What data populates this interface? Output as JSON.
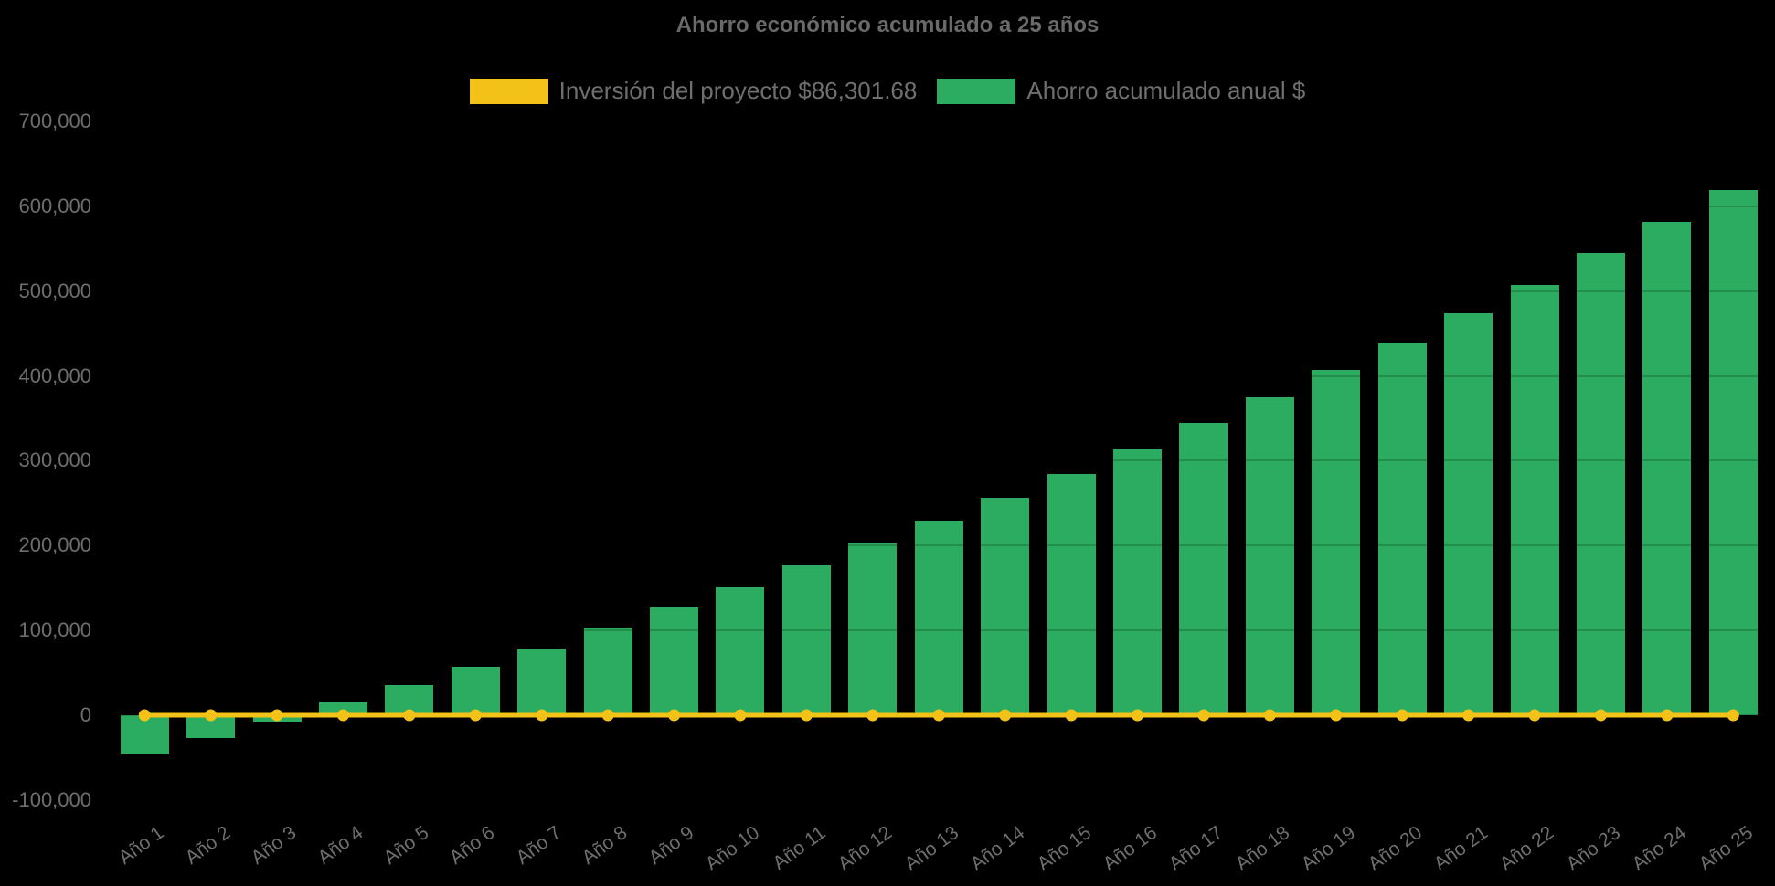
{
  "chart_data": {
    "type": "bar",
    "title": "Ahorro económico acumulado a 25 años",
    "background_color": "#000000",
    "text_color": "#6e6e6e",
    "legend_position": "top",
    "categories": [
      "Año 1",
      "Año 2",
      "Año 3",
      "Año 4",
      "Año 5",
      "Año 6",
      "Año 7",
      "Año 8",
      "Año 9",
      "Año 10",
      "Año 11",
      "Año 12",
      "Año 13",
      "Año 14",
      "Año 15",
      "Año 16",
      "Año 17",
      "Año 18",
      "Año 19",
      "Año 20",
      "Año 21",
      "Año 22",
      "Año 23",
      "Año 24",
      "Año 25"
    ],
    "series": [
      {
        "name": "Inversión del proyecto $86,301.68",
        "type": "line",
        "color": "#f2c218",
        "marker": "circle",
        "values": [
          0,
          0,
          0,
          0,
          0,
          0,
          0,
          0,
          0,
          0,
          0,
          0,
          0,
          0,
          0,
          0,
          0,
          0,
          0,
          0,
          0,
          0,
          0,
          0,
          0
        ]
      },
      {
        "name": "Ahorro acumulado anual $",
        "type": "bar",
        "color": "#2bac60",
        "values": [
          -46500,
          -27000,
          -7000,
          15500,
          35000,
          57000,
          78500,
          103500,
          127000,
          150500,
          176500,
          202500,
          229500,
          256000,
          284000,
          313500,
          344500,
          374500,
          407000,
          439500,
          473500,
          507000,
          545000,
          581500,
          619000
        ]
      }
    ],
    "y_axis": {
      "min": -100000,
      "max": 700000,
      "ticks": [
        {
          "label": "700,000",
          "value": 700000
        },
        {
          "label": "600,000",
          "value": 600000
        },
        {
          "label": "500,000",
          "value": 500000
        },
        {
          "label": "400,000",
          "value": 400000
        },
        {
          "label": "300,000",
          "value": 300000
        },
        {
          "label": "200,000",
          "value": 200000
        },
        {
          "label": "100,000",
          "value": 100000
        },
        {
          "label": "0",
          "value": 0
        },
        {
          "label": "-100,000",
          "value": -100000
        }
      ]
    },
    "x_axis": {
      "label_rotation_deg": -36
    }
  }
}
